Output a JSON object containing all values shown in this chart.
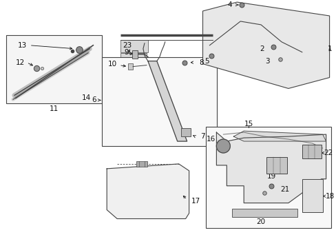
{
  "bg_color": "#ffffff",
  "fig_width": 4.89,
  "fig_height": 3.6,
  "dpi": 100,
  "line_color": "#444444",
  "text_color": "#111111",
  "font_size": 7.5
}
